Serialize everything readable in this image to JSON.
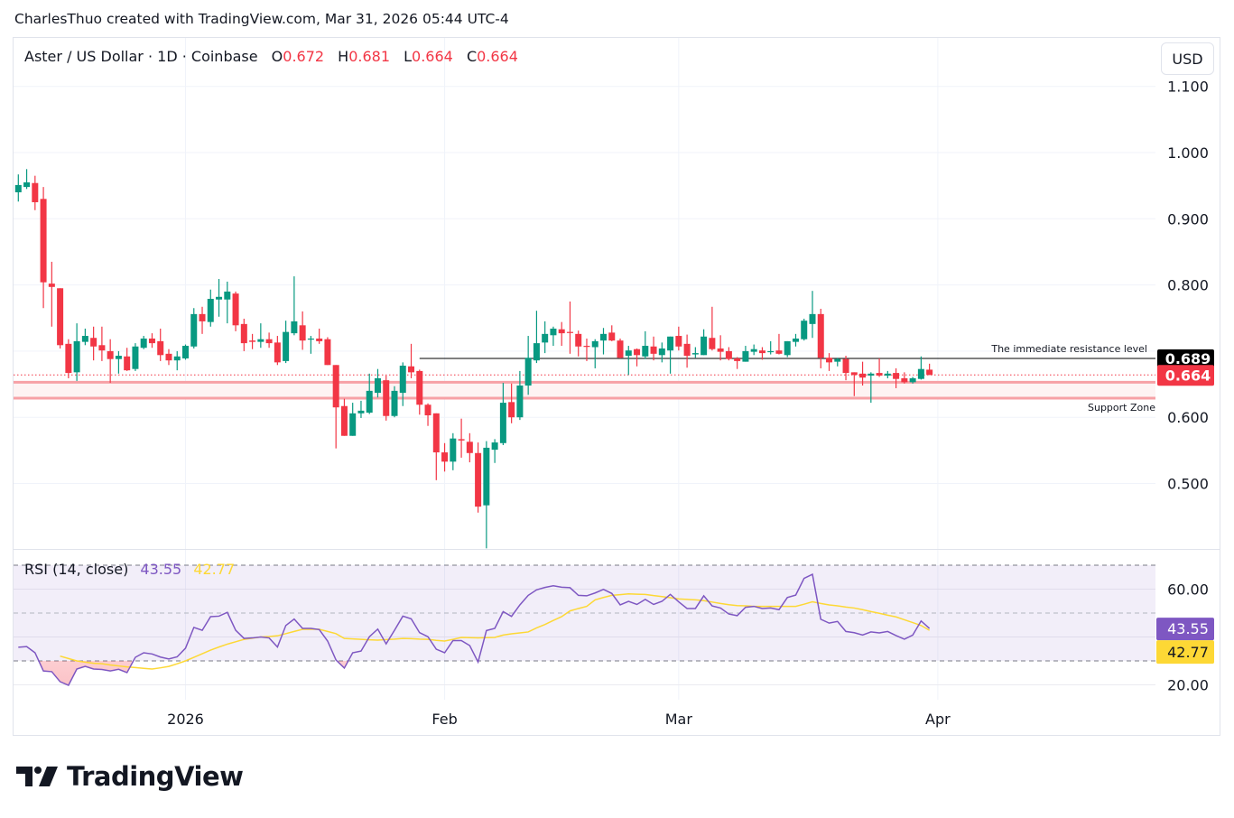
{
  "caption": "CharlesThuo created with TradingView.com, Mar 31, 2026 05:44 UTC-4",
  "legend": {
    "symbol": "Aster / US Dollar · 1D · Coinbase",
    "o_label": "O",
    "o": "0.672",
    "h_label": "H",
    "h": "0.681",
    "l_label": "L",
    "l": "0.664",
    "c_label": "C",
    "c": "0.664"
  },
  "currency_button": "USD",
  "brand": "TradingView",
  "colors": {
    "up": "#089981",
    "down": "#F23645",
    "rsi": "#7E57C2",
    "rsi_ma": "#FDD835",
    "support": "#F7A1A6",
    "resistance": "#000000"
  },
  "chart_data": [
    {
      "type": "candlestick",
      "title": "Aster / US Dollar · 1D · Coinbase",
      "ylim": [
        0.4,
        1.1
      ],
      "y_ticks": [
        "1.100",
        "1.000",
        "0.900",
        "0.800",
        "0.600",
        "0.500"
      ],
      "y_tick_values": [
        1.1,
        1.0,
        0.9,
        0.8,
        0.6,
        0.5
      ],
      "x_ticks": [
        {
          "label": "2026",
          "index": 20
        },
        {
          "label": "Feb",
          "index": 51
        },
        {
          "label": "Mar",
          "index": 79
        },
        {
          "label": "Apr",
          "index": 110
        }
      ],
      "ohlc": [
        [
          0.94,
          0.967,
          0.926,
          0.951
        ],
        [
          0.948,
          0.975,
          0.945,
          0.955
        ],
        [
          0.954,
          0.965,
          0.913,
          0.925
        ],
        [
          0.93,
          0.948,
          0.765,
          0.804
        ],
        [
          0.802,
          0.835,
          0.737,
          0.797
        ],
        [
          0.795,
          0.795,
          0.704,
          0.709
        ],
        [
          0.711,
          0.718,
          0.659,
          0.667
        ],
        [
          0.668,
          0.742,
          0.655,
          0.715
        ],
        [
          0.714,
          0.734,
          0.709,
          0.723
        ],
        [
          0.72,
          0.737,
          0.686,
          0.707
        ],
        [
          0.709,
          0.737,
          0.685,
          0.701
        ],
        [
          0.7,
          0.718,
          0.652,
          0.688
        ],
        [
          0.688,
          0.7,
          0.666,
          0.693
        ],
        [
          0.692,
          0.705,
          0.67,
          0.671
        ],
        [
          0.673,
          0.712,
          0.67,
          0.707
        ],
        [
          0.705,
          0.723,
          0.703,
          0.719
        ],
        [
          0.719,
          0.727,
          0.705,
          0.712
        ],
        [
          0.715,
          0.734,
          0.685,
          0.694
        ],
        [
          0.696,
          0.703,
          0.679,
          0.686
        ],
        [
          0.686,
          0.7,
          0.671,
          0.692
        ],
        [
          0.689,
          0.71,
          0.687,
          0.708
        ],
        [
          0.707,
          0.765,
          0.704,
          0.756
        ],
        [
          0.756,
          0.767,
          0.726,
          0.745
        ],
        [
          0.744,
          0.793,
          0.737,
          0.779
        ],
        [
          0.778,
          0.809,
          0.752,
          0.782
        ],
        [
          0.778,
          0.805,
          0.742,
          0.79
        ],
        [
          0.787,
          0.79,
          0.73,
          0.739
        ],
        [
          0.741,
          0.749,
          0.7,
          0.712
        ],
        [
          0.716,
          0.726,
          0.703,
          0.714
        ],
        [
          0.714,
          0.742,
          0.705,
          0.718
        ],
        [
          0.718,
          0.728,
          0.705,
          0.712
        ],
        [
          0.713,
          0.723,
          0.679,
          0.683
        ],
        [
          0.685,
          0.746,
          0.682,
          0.729
        ],
        [
          0.727,
          0.813,
          0.724,
          0.745
        ],
        [
          0.739,
          0.76,
          0.702,
          0.716
        ],
        [
          0.718,
          0.723,
          0.696,
          0.719
        ],
        [
          0.719,
          0.734,
          0.711,
          0.715
        ],
        [
          0.718,
          0.721,
          0.679,
          0.679
        ],
        [
          0.679,
          0.679,
          0.553,
          0.615
        ],
        [
          0.617,
          0.628,
          0.572,
          0.572
        ],
        [
          0.572,
          0.622,
          0.572,
          0.606
        ],
        [
          0.606,
          0.625,
          0.599,
          0.61
        ],
        [
          0.607,
          0.666,
          0.605,
          0.64
        ],
        [
          0.637,
          0.673,
          0.63,
          0.659
        ],
        [
          0.656,
          0.663,
          0.595,
          0.602
        ],
        [
          0.602,
          0.647,
          0.6,
          0.64
        ],
        [
          0.637,
          0.683,
          0.617,
          0.678
        ],
        [
          0.677,
          0.711,
          0.659,
          0.668
        ],
        [
          0.67,
          0.672,
          0.604,
          0.619
        ],
        [
          0.619,
          0.621,
          0.587,
          0.603
        ],
        [
          0.606,
          0.606,
          0.505,
          0.547
        ],
        [
          0.547,
          0.561,
          0.518,
          0.533
        ],
        [
          0.533,
          0.576,
          0.52,
          0.568
        ],
        [
          0.567,
          0.598,
          0.539,
          0.565
        ],
        [
          0.563,
          0.576,
          0.532,
          0.546
        ],
        [
          0.546,
          0.562,
          0.456,
          0.465
        ],
        [
          0.467,
          0.564,
          0.402,
          0.554
        ],
        [
          0.551,
          0.567,
          0.531,
          0.562
        ],
        [
          0.561,
          0.652,
          0.558,
          0.622
        ],
        [
          0.623,
          0.651,
          0.591,
          0.6
        ],
        [
          0.6,
          0.67,
          0.596,
          0.648
        ],
        [
          0.648,
          0.723,
          0.634,
          0.69
        ],
        [
          0.686,
          0.761,
          0.682,
          0.712
        ],
        [
          0.713,
          0.745,
          0.697,
          0.726
        ],
        [
          0.724,
          0.737,
          0.708,
          0.734
        ],
        [
          0.733,
          0.744,
          0.708,
          0.727
        ],
        [
          0.729,
          0.775,
          0.696,
          0.728
        ],
        [
          0.726,
          0.731,
          0.692,
          0.707
        ],
        [
          0.708,
          0.719,
          0.685,
          0.707
        ],
        [
          0.706,
          0.718,
          0.674,
          0.715
        ],
        [
          0.716,
          0.735,
          0.695,
          0.726
        ],
        [
          0.728,
          0.739,
          0.715,
          0.716
        ],
        [
          0.716,
          0.719,
          0.689,
          0.69
        ],
        [
          0.693,
          0.708,
          0.664,
          0.701
        ],
        [
          0.703,
          0.704,
          0.677,
          0.694
        ],
        [
          0.692,
          0.73,
          0.688,
          0.708
        ],
        [
          0.707,
          0.722,
          0.686,
          0.696
        ],
        [
          0.694,
          0.713,
          0.683,
          0.704
        ],
        [
          0.701,
          0.722,
          0.666,
          0.722
        ],
        [
          0.723,
          0.737,
          0.701,
          0.707
        ],
        [
          0.711,
          0.725,
          0.675,
          0.693
        ],
        [
          0.695,
          0.706,
          0.69,
          0.697
        ],
        [
          0.694,
          0.733,
          0.694,
          0.722
        ],
        [
          0.72,
          0.767,
          0.701,
          0.703
        ],
        [
          0.704,
          0.724,
          0.686,
          0.699
        ],
        [
          0.7,
          0.706,
          0.686,
          0.688
        ],
        [
          0.689,
          0.691,
          0.673,
          0.685
        ],
        [
          0.684,
          0.708,
          0.684,
          0.7
        ],
        [
          0.699,
          0.71,
          0.694,
          0.703
        ],
        [
          0.701,
          0.706,
          0.687,
          0.697
        ],
        [
          0.699,
          0.715,
          0.695,
          0.7
        ],
        [
          0.701,
          0.726,
          0.695,
          0.696
        ],
        [
          0.694,
          0.715,
          0.691,
          0.715
        ],
        [
          0.714,
          0.726,
          0.707,
          0.719
        ],
        [
          0.718,
          0.749,
          0.716,
          0.746
        ],
        [
          0.741,
          0.791,
          0.72,
          0.756
        ],
        [
          0.756,
          0.764,
          0.674,
          0.69
        ],
        [
          0.69,
          0.697,
          0.67,
          0.683
        ],
        [
          0.684,
          0.69,
          0.677,
          0.688
        ],
        [
          0.688,
          0.693,
          0.656,
          0.667
        ],
        [
          0.668,
          0.668,
          0.632,
          0.664
        ],
        [
          0.666,
          0.684,
          0.648,
          0.66
        ],
        [
          0.663,
          0.668,
          0.622,
          0.666
        ],
        [
          0.667,
          0.689,
          0.661,
          0.663
        ],
        [
          0.663,
          0.67,
          0.659,
          0.666
        ],
        [
          0.667,
          0.674,
          0.644,
          0.658
        ],
        [
          0.659,
          0.668,
          0.651,
          0.653
        ],
        [
          0.653,
          0.661,
          0.651,
          0.659
        ],
        [
          0.658,
          0.692,
          0.657,
          0.673
        ],
        [
          0.672,
          0.681,
          0.664,
          0.664
        ]
      ],
      "last_price": {
        "value": 0.664,
        "label": "0.664"
      },
      "annotations": {
        "resistance": {
          "value": 0.689,
          "label": "0.689",
          "text": "The immediate resistance level",
          "start_index": 48
        },
        "support_zone": {
          "top": 0.653,
          "bottom": 0.629,
          "text": "Support Zone"
        }
      }
    },
    {
      "type": "line",
      "title": "RSI (14, close)",
      "ylim": [
        12,
        80
      ],
      "bands": {
        "upper": 70,
        "middle": 50,
        "lower": 30
      },
      "y_ticks": [
        "60.00",
        "20.00"
      ],
      "y_tick_values": [
        60,
        20
      ],
      "series": [
        {
          "name": "RSI",
          "last_label": "43.55",
          "values": [
            35.7,
            36.0,
            33.4,
            25.8,
            25.5,
            21.3,
            19.8,
            26.6,
            27.7,
            26.6,
            26.4,
            25.8,
            26.5,
            25.1,
            31.5,
            33.4,
            32.9,
            31.6,
            30.8,
            31.7,
            35.3,
            44.0,
            42.8,
            48.5,
            48.7,
            50.3,
            42.8,
            39.4,
            39.6,
            40.0,
            39.6,
            35.8,
            44.8,
            47.5,
            43.6,
            43.6,
            43.1,
            38.3,
            30.4,
            27.0,
            33.4,
            34.1,
            40.1,
            43.3,
            37.1,
            42.8,
            48.7,
            47.6,
            41.8,
            40.1,
            34.9,
            33.4,
            38.5,
            38.5,
            36.4,
            29.5,
            42.7,
            43.6,
            50.6,
            48.6,
            53.4,
            57.4,
            59.7,
            60.7,
            61.4,
            60.8,
            60.6,
            57.4,
            57.2,
            58.4,
            59.9,
            58.2,
            53.4,
            54.9,
            53.6,
            55.7,
            53.6,
            54.9,
            57.8,
            54.7,
            51.9,
            51.9,
            57.2,
            53.0,
            52.1,
            49.6,
            48.9,
            52.4,
            52.8,
            51.9,
            52.1,
            51.4,
            56.5,
            57.5,
            64.5,
            66.2,
            47.4,
            45.8,
            46.5,
            42.3,
            41.8,
            40.8,
            42.1,
            41.7,
            42.3,
            40.6,
            39.1,
            40.8,
            46.7,
            43.55
          ]
        },
        {
          "name": "RSI-based MA",
          "last_label": "42.77",
          "values": [
            null,
            null,
            null,
            null,
            null,
            32.0,
            31.0,
            30.0,
            29.5,
            29.0,
            28.8,
            28.3,
            27.9,
            27.5,
            27.2,
            26.9,
            26.6,
            27.1,
            27.7,
            28.8,
            30.0,
            31.5,
            33.0,
            34.5,
            35.8,
            37.0,
            38.0,
            39.0,
            39.5,
            40.0,
            40.2,
            40.5,
            41.4,
            42.3,
            43.2,
            43.2,
            43.2,
            42.3,
            41.4,
            39.4,
            39.2,
            39.0,
            38.8,
            38.7,
            38.9,
            39.1,
            39.4,
            39.3,
            39.1,
            39.0,
            38.6,
            38.3,
            39.0,
            39.8,
            39.7,
            39.6,
            39.7,
            39.8,
            40.8,
            41.3,
            41.7,
            42.1,
            43.8,
            45.2,
            46.9,
            48.5,
            50.9,
            51.9,
            52.8,
            55.5,
            56.5,
            57.4,
            57.7,
            58.0,
            57.9,
            57.8,
            57.3,
            56.9,
            56.4,
            55.9,
            55.7,
            55.5,
            55.2,
            54.6,
            54.0,
            53.5,
            53.1,
            53.0,
            52.8,
            52.8,
            52.8,
            52.8,
            52.8,
            52.8,
            53.7,
            54.7,
            54.0,
            53.4,
            53.0,
            52.5,
            52.1,
            51.4,
            50.6,
            49.9,
            49.1,
            48.4,
            47.2,
            46.0,
            44.8,
            42.77
          ]
        }
      ]
    }
  ]
}
